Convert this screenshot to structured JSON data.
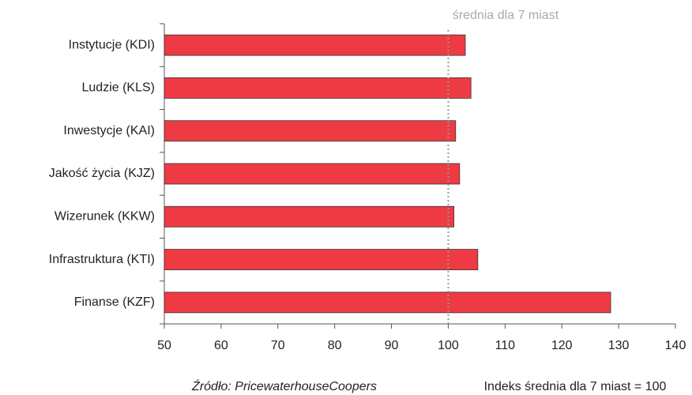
{
  "chart_data": {
    "type": "bar",
    "orientation": "horizontal",
    "categories": [
      "Instytucje (KDI)",
      "Ludzie (KLS)",
      "Inwestycje (KAI)",
      "Jakość życia (KJZ)",
      "Wizerunek (KKW)",
      "Infrastruktura (KTI)",
      "Finanse (KZF)"
    ],
    "values": [
      103,
      104,
      101.3,
      102,
      101,
      105.2,
      128.6
    ],
    "color": "#ee3b43",
    "xlim": [
      50,
      140
    ],
    "xticks": [
      50,
      60,
      70,
      80,
      90,
      100,
      110,
      120,
      130,
      140
    ],
    "reference": {
      "value": 100,
      "label": "średnia dla 7 miast"
    },
    "source": "Źródło: PricewaterhouseCoopers",
    "note": "Indeks średnia dla 7 miast = 100"
  }
}
